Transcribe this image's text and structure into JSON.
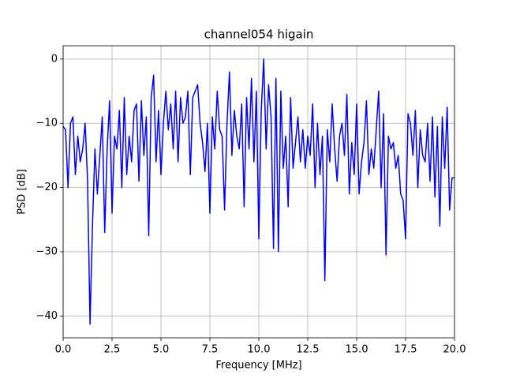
{
  "chart_data": {
    "type": "line",
    "title": "channel054 higain",
    "x_label": "Frequency [MHz]",
    "y_label": "PSD [dB]",
    "x": [
      0,
      0.125,
      0.25,
      0.375,
      0.5,
      0.625,
      0.75,
      0.875,
      1,
      1.125,
      1.25,
      1.375,
      1.5,
      1.625,
      1.75,
      1.875,
      2,
      2.125,
      2.25,
      2.375,
      2.5,
      2.625,
      2.75,
      2.875,
      3,
      3.125,
      3.25,
      3.375,
      3.5,
      3.625,
      3.75,
      3.875,
      4,
      4.125,
      4.25,
      4.375,
      4.5,
      4.625,
      4.75,
      4.875,
      5,
      5.125,
      5.25,
      5.375,
      5.5,
      5.625,
      5.75,
      5.875,
      6,
      6.125,
      6.25,
      6.375,
      6.5,
      6.625,
      6.75,
      6.875,
      7,
      7.125,
      7.25,
      7.375,
      7.5,
      7.625,
      7.75,
      7.875,
      8,
      8.125,
      8.25,
      8.375,
      8.5,
      8.625,
      8.75,
      8.875,
      9,
      9.125,
      9.25,
      9.375,
      9.5,
      9.625,
      9.75,
      9.875,
      10,
      10.125,
      10.25,
      10.375,
      10.5,
      10.625,
      10.75,
      10.875,
      11,
      11.125,
      11.25,
      11.375,
      11.5,
      11.625,
      11.75,
      11.875,
      12,
      12.125,
      12.25,
      12.375,
      12.5,
      12.625,
      12.75,
      12.875,
      13,
      13.125,
      13.25,
      13.375,
      13.5,
      13.625,
      13.75,
      13.875,
      14,
      14.125,
      14.25,
      14.375,
      14.5,
      14.625,
      14.75,
      14.875,
      15,
      15.125,
      15.25,
      15.375,
      15.5,
      15.625,
      15.75,
      15.875,
      16,
      16.125,
      16.25,
      16.375,
      16.5,
      16.625,
      16.75,
      16.875,
      17,
      17.125,
      17.25,
      17.375,
      17.5,
      17.625,
      17.75,
      17.875,
      18,
      18.125,
      18.25,
      18.375,
      18.5,
      18.625,
      18.75,
      18.875,
      19,
      19.125,
      19.25,
      19.375,
      19.5,
      19.625,
      19.75,
      19.875,
      20
    ],
    "series": [
      {
        "color": "#0000ff",
        "values": [
          -10.5,
          -11,
          -20,
          -10,
          -9,
          -18,
          -12,
          -16,
          -14,
          -10,
          -19,
          -41.3,
          -26,
          -14,
          -21,
          -15,
          -9,
          -27,
          -14,
          -6.5,
          -24,
          -12,
          -14,
          -8,
          -20,
          -6,
          -18,
          -12,
          -16,
          -8,
          -7,
          -19,
          -6.5,
          -15,
          -9,
          -27.5,
          -6,
          -2.5,
          -16,
          -8,
          -18,
          -10,
          -5,
          -11,
          -7,
          -14,
          -5,
          -16,
          -6,
          -10,
          -9,
          -5,
          -18,
          -6,
          -5,
          -4,
          -10,
          -13,
          -17.5,
          -10,
          -24,
          -9,
          -14,
          -5,
          -11,
          -12,
          -23.5,
          -10,
          -2,
          -15,
          -8,
          -12,
          -14,
          -7,
          -23,
          -6,
          -14,
          -3,
          -16,
          -5,
          -28,
          -8,
          0,
          -14,
          -4,
          -9,
          -29.5,
          -3,
          -30,
          -5,
          -17,
          -12,
          -23,
          -6,
          -17,
          -13,
          -9,
          -16,
          -11,
          -17,
          -12,
          -15,
          -7,
          -20,
          -10,
          -18,
          -12,
          -34.5,
          -11,
          -16,
          -7,
          -14,
          -19,
          -12,
          -10,
          -15,
          -5.5,
          -21,
          -13,
          -18,
          -7,
          -21,
          -16,
          -13,
          -6.5,
          -18,
          -14,
          -17,
          -11,
          -5,
          -20,
          -8.5,
          -30.5,
          -12,
          -14,
          -13,
          -17,
          -15,
          -21,
          -22,
          -28,
          -8.5,
          -10,
          -15,
          -8,
          -20,
          -11,
          -15,
          -16,
          -10,
          -19,
          -9,
          -21.5,
          -10.5,
          -26,
          -9,
          -17,
          -7.5,
          -23.5,
          -18.5,
          -18.5
        ]
      }
    ],
    "xlim": [
      0,
      20
    ],
    "ylim": [
      -43.4,
      2.07
    ],
    "xticks": [
      {
        "value": 0,
        "label": "0.0"
      },
      {
        "value": 2.5,
        "label": "2.5"
      },
      {
        "value": 5,
        "label": "5.0"
      },
      {
        "value": 7.5,
        "label": "7.5"
      },
      {
        "value": 10,
        "label": "10.0"
      },
      {
        "value": 12.5,
        "label": "12.5"
      },
      {
        "value": 15,
        "label": "15.0"
      },
      {
        "value": 17.5,
        "label": "17.5"
      },
      {
        "value": 20,
        "label": "20.0"
      }
    ],
    "yticks": [
      {
        "value": -40,
        "label": "−40"
      },
      {
        "value": -30,
        "label": "−30"
      },
      {
        "value": -20,
        "label": "−20"
      },
      {
        "value": -10,
        "label": "−10"
      },
      0
    ],
    "grid": true
  }
}
